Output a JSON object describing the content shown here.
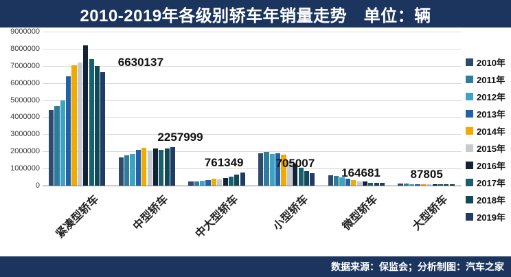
{
  "header": {
    "title": "2010-2019年各级别轿车年销量走势　单位：辆"
  },
  "footer": {
    "source": "数据来源：保监会；分析制图：汽车之家"
  },
  "colors": {
    "banner": "#1C355E",
    "background": "#FFFFFF",
    "gridline": "#D9D9D9",
    "axis_line": "#808080"
  },
  "chart_data": {
    "type": "bar",
    "title": "2010-2019年各级别轿车年销量走势",
    "unit_label": "单位：辆",
    "ylabel": "",
    "xlabel": "",
    "ylim": [
      0,
      9000000
    ],
    "ytick_step": 1000000,
    "yticks": [
      0,
      1000000,
      2000000,
      3000000,
      4000000,
      5000000,
      6000000,
      7000000,
      8000000,
      9000000
    ],
    "grid": true,
    "legend_position": "right",
    "categories": [
      "紧凑型轿车",
      "中型轿车",
      "中大型轿车",
      "小型轿车",
      "微型轿车",
      "大型轿车"
    ],
    "series": [
      {
        "name": "2010年",
        "color": "#2E4B6E",
        "values": [
          4400000,
          1650000,
          230000,
          1900000,
          620000,
          120000
        ]
      },
      {
        "name": "2011年",
        "color": "#2E7D9C",
        "values": [
          4650000,
          1750000,
          260000,
          1950000,
          550000,
          110000
        ]
      },
      {
        "name": "2012年",
        "color": "#3EA4C4",
        "values": [
          5000000,
          1850000,
          280000,
          1850000,
          470000,
          100000
        ]
      },
      {
        "name": "2013年",
        "color": "#2062A8",
        "values": [
          6400000,
          2100000,
          330000,
          1900000,
          400000,
          95000
        ]
      },
      {
        "name": "2014年",
        "color": "#F2A900",
        "values": [
          7050000,
          2200000,
          400000,
          1800000,
          310000,
          85000
        ]
      },
      {
        "name": "2015年",
        "color": "#C7CBCF",
        "values": [
          7200000,
          2050000,
          380000,
          1450000,
          240000,
          70000
        ]
      },
      {
        "name": "2016年",
        "color": "#122338",
        "values": [
          8200000,
          2150000,
          430000,
          1300000,
          230000,
          65000
        ]
      },
      {
        "name": "2017年",
        "color": "#1A5F6E",
        "values": [
          7400000,
          2100000,
          520000,
          1050000,
          180000,
          70000
        ]
      },
      {
        "name": "2018年",
        "color": "#0E4A57",
        "values": [
          7000000,
          2150000,
          640000,
          850000,
          150000,
          80000
        ]
      },
      {
        "name": "2019年",
        "color": "#1E3C64",
        "values": [
          6630137,
          2257999,
          761349,
          705007,
          164681,
          87805
        ]
      }
    ],
    "data_labels": {
      "series": "2019年",
      "values": [
        "6630137",
        "2257999",
        "761349",
        "705007",
        "164681",
        "87805"
      ]
    }
  }
}
